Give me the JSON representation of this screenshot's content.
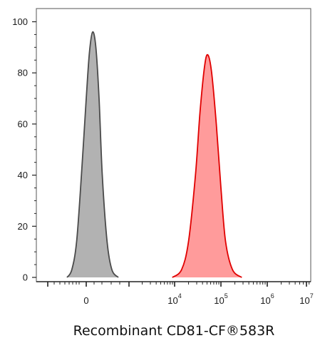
{
  "chart_data": {
    "type": "area",
    "title": "",
    "xlabel": "Recombinant CD81-CF®583R",
    "ylabel": "",
    "x_scale": "biexponential",
    "x_ticks": [
      {
        "base": "0",
        "exp": ""
      },
      {
        "base": "10",
        "exp": "4"
      },
      {
        "base": "10",
        "exp": "5"
      },
      {
        "base": "10",
        "exp": "6"
      },
      {
        "base": "10",
        "exp": "7"
      }
    ],
    "y_ticks": [
      "0",
      "20",
      "40",
      "60",
      "80",
      "100"
    ],
    "ylim": [
      0,
      100
    ],
    "grid": false,
    "legend": "none",
    "series": [
      {
        "color_fill": "#b2b2b2",
        "color_line": "#4a4a4a",
        "peak_x": "~1000 (just above 0)",
        "peak_y": 96,
        "profile_x_decades": [
          -0.6,
          -0.45,
          -0.3,
          -0.15,
          0.0,
          0.1,
          0.2,
          0.3,
          0.4,
          0.5,
          0.65,
          0.8,
          1.0
        ],
        "profile_y": [
          0,
          3,
          14,
          40,
          70,
          88,
          96,
          90,
          70,
          40,
          14,
          3,
          0
        ]
      },
      {
        "color_fill": "#ff9b9b",
        "color_line": "#e00000",
        "peak_x": "~5×10^4",
        "peak_y": 87,
        "profile_x_log10": [
          3.95,
          4.15,
          4.3,
          4.45,
          4.55,
          4.65,
          4.72,
          4.8,
          4.9,
          5.0,
          5.1,
          5.25,
          5.45
        ],
        "profile_y": [
          0,
          3,
          14,
          40,
          65,
          83,
          87,
          80,
          60,
          35,
          14,
          3,
          0
        ]
      }
    ]
  }
}
